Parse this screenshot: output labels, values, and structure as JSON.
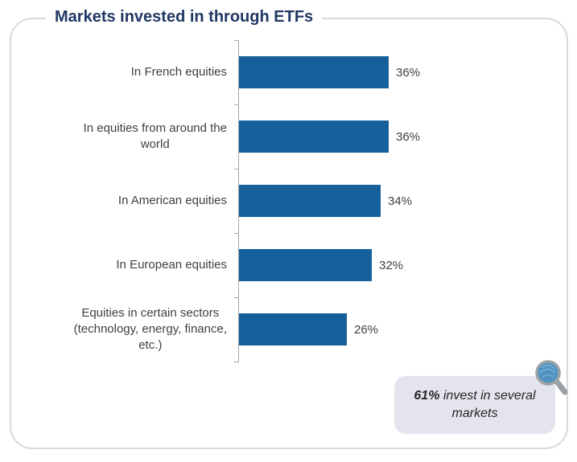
{
  "chart_data": {
    "type": "bar",
    "orientation": "horizontal",
    "title": "Markets invested in through ETFs",
    "categories": [
      "In French equities",
      "In equities from around the\nworld",
      "In American equities",
      "In European equities",
      "Equities in certain sectors\n(technology, energy, finance,\netc.)"
    ],
    "values": [
      36,
      36,
      34,
      32,
      26
    ],
    "value_labels": [
      "36%",
      "36%",
      "34%",
      "32%",
      "26%"
    ],
    "unit": "%",
    "xlim": [
      0,
      40
    ],
    "grid": false,
    "legend": false,
    "bar_color": "#15609B",
    "title_color": "#1F3864",
    "label_color": "#3F3F3F",
    "axis_color": "#A6A6A6"
  },
  "card": {
    "border_color": "#D9D9D9"
  },
  "callout": {
    "highlight": "61%",
    "text": "invest in several markets",
    "background": "#E3E4EE",
    "text_color": "#262626",
    "icon": "magnifier",
    "icon_lens_color": "#4E92C2",
    "icon_rim_color": "#9AA1A7"
  }
}
